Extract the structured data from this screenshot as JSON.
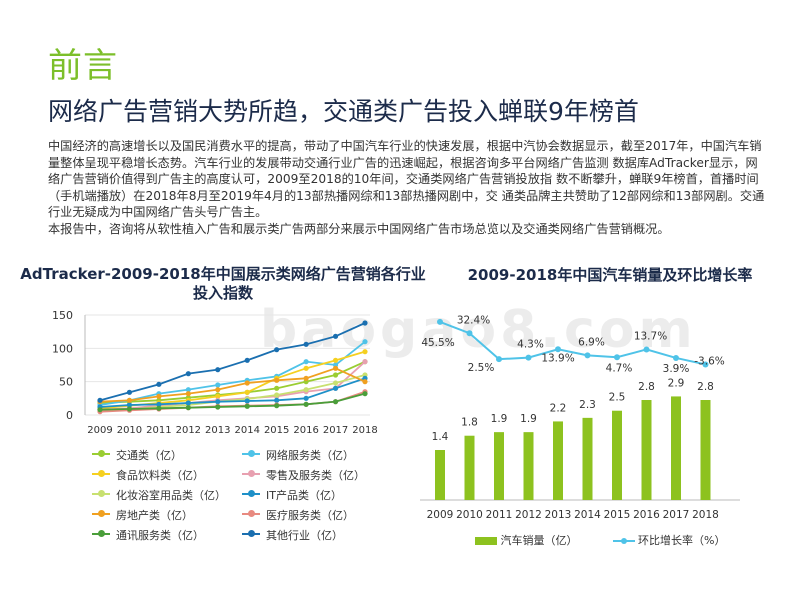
{
  "page": {
    "section_title": "前言",
    "headline": "网络广告营销大势所趋，交通类广告投入蝉联9年榜首",
    "paragraph1": "中国经济的高速增长以及国民消费水平的提高，带动了中国汽车行业的快速发展，根据中汽协会数据显示，截至2017年，中国汽车销量整体呈现平稳增长态势。汽车行业的发展带动交通行业广告的迅速崛起，根据咨询多平台网络广告监测 数据库AdTracker显示，网络广告营销价值得到广告主的高度认可，2009至2018的10年间，交通类网络广告营销投放指 数不断攀升，蝉联9年榜首，首播时间（手机端播放）在2018年8月至2019年4月的13部热播网综和13部热播网剧中，交 通类品牌主共赞助了12部网综和13部网剧。交通行业无疑成为中国网络广告头号广告主。",
    "paragraph2": "本报告中，咨询将从软性植入广告和展示类广告两部分来展示中国网络广告市场总览以及交通类网络广告营销概况。",
    "watermark": "baogao8.com"
  },
  "chart_data": [
    {
      "type": "line",
      "title": "AdTracker-2009-2018年中国展示类网络广告营销各行业投入指数",
      "categories": [
        "2009",
        "2010",
        "2011",
        "2012",
        "2013",
        "2014",
        "2015",
        "2016",
        "2017",
        "2018"
      ],
      "ylim": [
        0,
        150
      ],
      "yticks": [
        0,
        50,
        100,
        150
      ],
      "series": [
        {
          "name": "交通类（亿）",
          "color": "#9acd32",
          "values": [
            18,
            20,
            22,
            26,
            30,
            34,
            40,
            50,
            60,
            80
          ]
        },
        {
          "name": "网络服务类（亿）",
          "color": "#4fc3e8",
          "values": [
            15,
            22,
            32,
            38,
            45,
            52,
            58,
            80,
            75,
            110
          ]
        },
        {
          "name": "食品饮料类（亿）",
          "color": "#f5d020",
          "values": [
            10,
            14,
            18,
            22,
            28,
            34,
            55,
            70,
            82,
            95
          ]
        },
        {
          "name": "零售及服务类（亿）",
          "color": "#e8a0b0",
          "values": [
            8,
            10,
            14,
            18,
            22,
            25,
            28,
            35,
            40,
            80
          ]
        },
        {
          "name": "化妆浴室用品类（亿）",
          "color": "#c8e070",
          "values": [
            6,
            8,
            12,
            15,
            20,
            24,
            30,
            38,
            48,
            60
          ]
        },
        {
          "name": "IT产品类（亿）",
          "color": "#1e90c8",
          "values": [
            12,
            15,
            16,
            18,
            20,
            21,
            22,
            25,
            40,
            55
          ]
        },
        {
          "name": "房地产类（亿）",
          "color": "#f0a020",
          "values": [
            20,
            22,
            28,
            32,
            38,
            48,
            52,
            55,
            70,
            50
          ]
        },
        {
          "name": "医疗服务类（亿）",
          "color": "#e88a80",
          "values": [
            5,
            7,
            9,
            11,
            13,
            14,
            15,
            16,
            20,
            35
          ]
        },
        {
          "name": "通讯服务类（亿）",
          "color": "#4a9e3a",
          "values": [
            8,
            9,
            10,
            11,
            12,
            13,
            14,
            16,
            20,
            32
          ]
        },
        {
          "name": "其他行业（亿）",
          "color": "#1a6fb0",
          "values": [
            22,
            34,
            46,
            62,
            68,
            82,
            98,
            106,
            118,
            138
          ]
        }
      ]
    },
    {
      "type": "bar+line",
      "title": "2009-2018年中国汽车销量及环比增长率",
      "categories": [
        "2009",
        "2010",
        "2011",
        "2012",
        "2013",
        "2014",
        "2015",
        "2016",
        "2017",
        "2018"
      ],
      "bar_series": {
        "name": "汽车销量（亿）",
        "color": "#8dc21f",
        "values": [
          1.4,
          1.8,
          1.9,
          1.9,
          2.2,
          2.3,
          2.5,
          2.8,
          2.9,
          2.8
        ]
      },
      "line_series": {
        "name": "环比增长率（%）",
        "color": "#4fc3e8",
        "values": [
          45.5,
          32.4,
          2.5,
          4.3,
          13.9,
          6.9,
          4.7,
          13.7,
          3.9,
          -3.6
        ],
        "labels": [
          "45.5%",
          "32.4%",
          "2.5%",
          "4.3%",
          "13.9%",
          "6.9%",
          "4.7%",
          "13.7%",
          "3.9%",
          "-3.6%"
        ]
      }
    }
  ]
}
